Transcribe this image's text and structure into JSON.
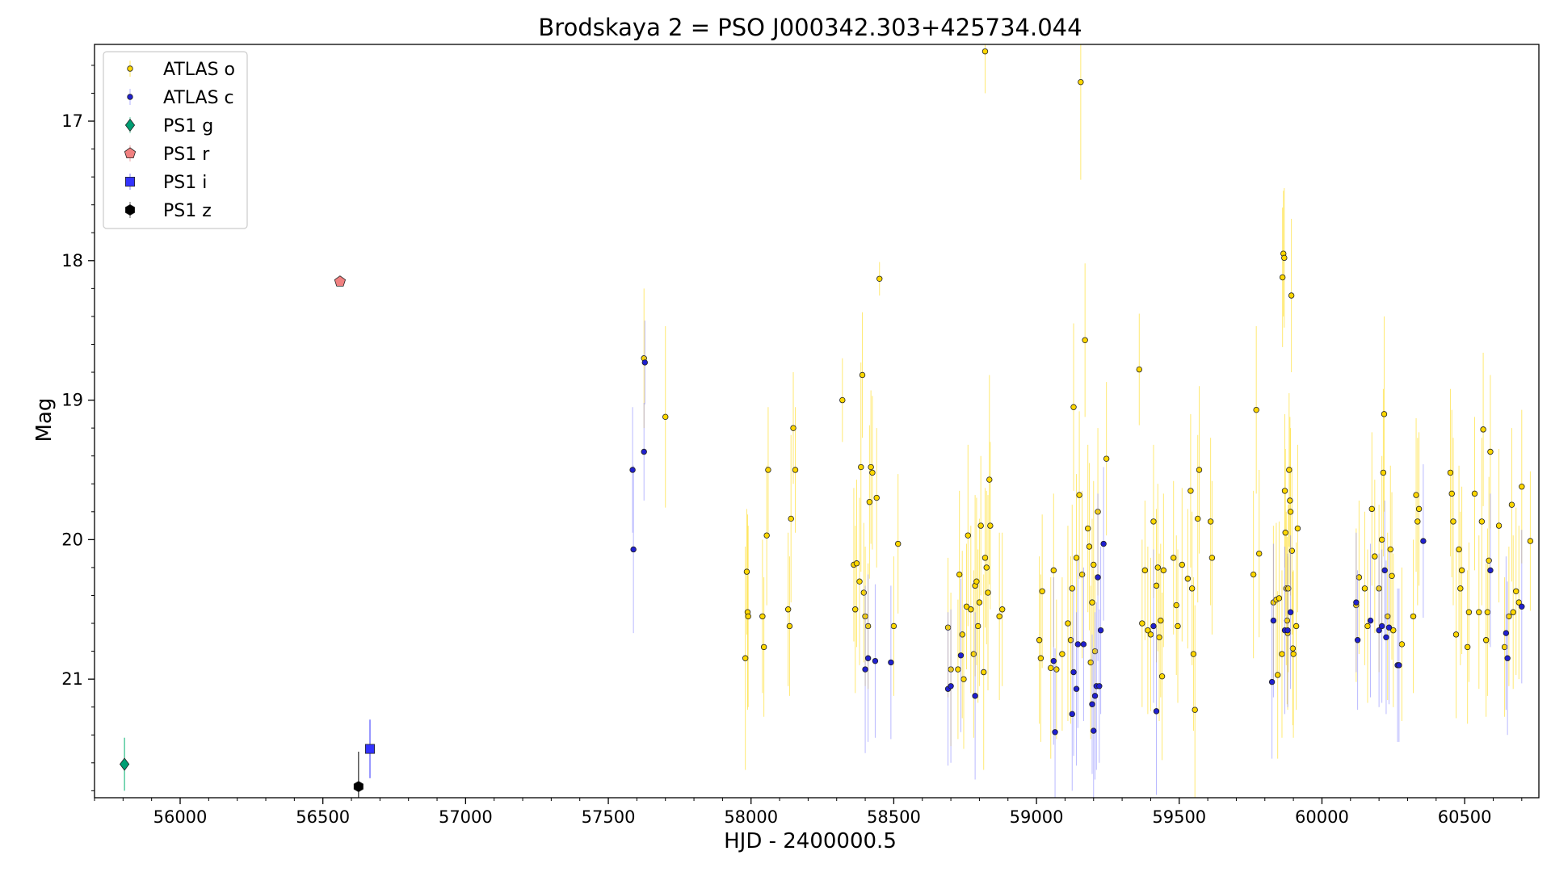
{
  "chart_data": {
    "type": "scatter",
    "title": "Brodskaya 2 = PSO J000342.303+425734.044",
    "xlabel": "HJD - 2400000.5",
    "ylabel": "Mag",
    "xlim": [
      55700,
      60760
    ],
    "ylim": [
      21.85,
      16.45
    ],
    "y_inverted": true,
    "grid": false,
    "legend_position": "top-left",
    "x_ticks": [
      "56000",
      "56500",
      "57000",
      "57500",
      "58000",
      "58500",
      "59000",
      "59500",
      "60000",
      "60500"
    ],
    "y_ticks": [
      "17",
      "18",
      "19",
      "20",
      "21"
    ],
    "series": [
      {
        "name": "ATLAS o",
        "marker": "circle",
        "color": "#ffd700",
        "error_color": "#ffd700",
        "points": [
          [
            57625,
            18.7,
            0.5
          ],
          [
            57700,
            19.12,
            0.65
          ],
          [
            57980,
            20.85,
            0.8
          ],
          [
            57985,
            20.23,
            0.45
          ],
          [
            57988,
            20.52,
            0.7
          ],
          [
            57990,
            20.55,
            0.65
          ],
          [
            58040,
            20.55,
            0.55
          ],
          [
            58045,
            20.77,
            0.5
          ],
          [
            58055,
            19.97,
            0.5
          ],
          [
            58060,
            19.5,
            0.45
          ],
          [
            58130,
            20.5,
            0.55
          ],
          [
            58135,
            20.62,
            0.5
          ],
          [
            58140,
            19.85,
            0.6
          ],
          [
            58148,
            19.2,
            0.4
          ],
          [
            58155,
            19.5,
            0.45
          ],
          [
            58320,
            19.0,
            0.3
          ],
          [
            58360,
            20.18,
            0.55
          ],
          [
            58365,
            20.5,
            0.6
          ],
          [
            58370,
            20.17,
            0.6
          ],
          [
            58380,
            20.3,
            0.6
          ],
          [
            58385,
            19.48,
            0.75
          ],
          [
            58390,
            18.82,
            0.45
          ],
          [
            58395,
            20.38,
            0.5
          ],
          [
            58400,
            20.55,
            0.5
          ],
          [
            58410,
            20.62,
            0.45
          ],
          [
            58415,
            19.73,
            0.55
          ],
          [
            58420,
            19.48,
            0.55
          ],
          [
            58425,
            19.52,
            0.55
          ],
          [
            58440,
            19.7,
            0.5
          ],
          [
            58450,
            18.13,
            0.12
          ],
          [
            58500,
            20.62,
            0.5
          ],
          [
            58515,
            20.03,
            0.5
          ],
          [
            58690,
            20.63,
            0.5
          ],
          [
            58700,
            20.93,
            0.55
          ],
          [
            58725,
            20.93,
            0.5
          ],
          [
            58730,
            20.25,
            0.6
          ],
          [
            58740,
            20.68,
            0.6
          ],
          [
            58745,
            21.0,
            0.5
          ],
          [
            58755,
            20.48,
            0.45
          ],
          [
            58760,
            19.97,
            0.65
          ],
          [
            58770,
            20.5,
            0.6
          ],
          [
            58780,
            20.82,
            0.6
          ],
          [
            58785,
            20.33,
            0.65
          ],
          [
            58790,
            20.3,
            0.6
          ],
          [
            58795,
            20.62,
            0.55
          ],
          [
            58800,
            20.45,
            0.6
          ],
          [
            58805,
            19.9,
            0.5
          ],
          [
            58815,
            20.95,
            0.7
          ],
          [
            58820,
            20.13,
            0.5
          ],
          [
            58825,
            20.2,
            0.55
          ],
          [
            58830,
            20.38,
            0.7
          ],
          [
            58835,
            19.57,
            0.75
          ],
          [
            58838,
            19.9,
            0.6
          ],
          [
            58870,
            20.55,
            0.6
          ],
          [
            58880,
            20.5,
            0.55
          ],
          [
            58820,
            16.5,
            0.3
          ],
          [
            59010,
            20.72,
            0.6
          ],
          [
            59015,
            20.85,
            0.6
          ],
          [
            59020,
            20.37,
            0.55
          ],
          [
            59050,
            20.92,
            0.65
          ],
          [
            59060,
            20.22,
            0.55
          ],
          [
            59070,
            20.93,
            0.5
          ],
          [
            59090,
            20.82,
            0.55
          ],
          [
            59110,
            20.6,
            0.7
          ],
          [
            59120,
            20.72,
            0.6
          ],
          [
            59125,
            20.35,
            0.6
          ],
          [
            59130,
            19.05,
            0.6
          ],
          [
            59140,
            20.13,
            0.6
          ],
          [
            59150,
            19.68,
            0.6
          ],
          [
            59155,
            16.72,
            0.7
          ],
          [
            59160,
            20.25,
            0.6
          ],
          [
            59170,
            18.57,
            0.55
          ],
          [
            59180,
            19.92,
            0.6
          ],
          [
            59185,
            20.05,
            0.6
          ],
          [
            59190,
            20.88,
            0.55
          ],
          [
            59195,
            20.45,
            0.6
          ],
          [
            59200,
            20.18,
            0.6
          ],
          [
            59205,
            20.8,
            0.55
          ],
          [
            59215,
            19.8,
            0.6
          ],
          [
            59245,
            19.42,
            0.55
          ],
          [
            59360,
            18.78,
            0.4
          ],
          [
            59370,
            20.6,
            0.6
          ],
          [
            59380,
            20.22,
            0.5
          ],
          [
            59390,
            20.65,
            0.6
          ],
          [
            59400,
            20.68,
            0.55
          ],
          [
            59410,
            19.87,
            0.55
          ],
          [
            59420,
            20.33,
            0.55
          ],
          [
            59425,
            20.2,
            0.6
          ],
          [
            59430,
            20.7,
            0.6
          ],
          [
            59435,
            20.58,
            0.55
          ],
          [
            59440,
            20.98,
            0.6
          ],
          [
            59445,
            20.22,
            0.55
          ],
          [
            59480,
            20.13,
            0.55
          ],
          [
            59490,
            20.47,
            0.5
          ],
          [
            59495,
            20.62,
            0.55
          ],
          [
            59510,
            20.18,
            0.55
          ],
          [
            59530,
            20.28,
            0.5
          ],
          [
            59540,
            19.65,
            0.55
          ],
          [
            59545,
            20.35,
            0.55
          ],
          [
            59550,
            20.82,
            0.55
          ],
          [
            59555,
            21.22,
            0.75
          ],
          [
            59565,
            19.85,
            0.6
          ],
          [
            59570,
            19.5,
            0.6
          ],
          [
            59610,
            19.87,
            0.6
          ],
          [
            59615,
            20.13,
            0.55
          ],
          [
            59760,
            20.25,
            0.6
          ],
          [
            59770,
            19.07,
            0.6
          ],
          [
            59780,
            20.1,
            0.6
          ],
          [
            59830,
            20.45,
            0.55
          ],
          [
            59840,
            20.43,
            0.55
          ],
          [
            59845,
            20.97,
            0.6
          ],
          [
            59850,
            20.42,
            0.55
          ],
          [
            59860,
            20.82,
            0.6
          ],
          [
            59862,
            18.12,
            0.5
          ],
          [
            59865,
            17.95,
            0.45
          ],
          [
            59868,
            17.98,
            0.5
          ],
          [
            59870,
            19.65,
            0.55
          ],
          [
            59872,
            19.95,
            0.6
          ],
          [
            59875,
            20.35,
            0.55
          ],
          [
            59878,
            20.58,
            0.6
          ],
          [
            59880,
            20.67,
            0.55
          ],
          [
            59882,
            20.35,
            0.6
          ],
          [
            59885,
            19.5,
            0.55
          ],
          [
            59888,
            19.72,
            0.6
          ],
          [
            59890,
            19.8,
            0.6
          ],
          [
            59893,
            18.25,
            0.55
          ],
          [
            59895,
            20.08,
            0.6
          ],
          [
            59898,
            20.78,
            0.55
          ],
          [
            59900,
            20.82,
            0.6
          ],
          [
            59910,
            20.62,
            0.6
          ],
          [
            59915,
            19.92,
            0.6
          ],
          [
            60120,
            20.47,
            0.55
          ],
          [
            60130,
            20.27,
            0.55
          ],
          [
            60150,
            20.35,
            0.55
          ],
          [
            60160,
            20.62,
            0.55
          ],
          [
            60175,
            19.78,
            0.55
          ],
          [
            60185,
            20.12,
            0.55
          ],
          [
            60200,
            20.35,
            0.6
          ],
          [
            60210,
            20.0,
            0.6
          ],
          [
            60215,
            19.52,
            0.6
          ],
          [
            60218,
            19.1,
            0.7
          ],
          [
            60230,
            20.55,
            0.6
          ],
          [
            60240,
            20.07,
            0.6
          ],
          [
            60245,
            20.26,
            0.6
          ],
          [
            60250,
            20.65,
            0.55
          ],
          [
            60280,
            20.75,
            0.55
          ],
          [
            60320,
            20.55,
            0.55
          ],
          [
            60330,
            19.68,
            0.55
          ],
          [
            60335,
            19.87,
            0.6
          ],
          [
            60340,
            19.78,
            0.55
          ],
          [
            60450,
            19.52,
            0.6
          ],
          [
            60455,
            19.67,
            0.6
          ],
          [
            60460,
            19.87,
            0.6
          ],
          [
            60470,
            20.68,
            0.6
          ],
          [
            60480,
            20.07,
            0.6
          ],
          [
            60485,
            20.35,
            0.55
          ],
          [
            60490,
            20.22,
            0.6
          ],
          [
            60510,
            20.77,
            0.55
          ],
          [
            60515,
            20.52,
            0.5
          ],
          [
            60535,
            19.67,
            0.55
          ],
          [
            60550,
            20.52,
            0.55
          ],
          [
            60560,
            19.87,
            0.6
          ],
          [
            60565,
            19.21,
            0.55
          ],
          [
            60575,
            20.72,
            0.55
          ],
          [
            60580,
            20.52,
            0.6
          ],
          [
            60585,
            20.15,
            0.6
          ],
          [
            60590,
            19.37,
            0.55
          ],
          [
            60620,
            19.9,
            0.55
          ],
          [
            60640,
            20.77,
            0.5
          ],
          [
            60655,
            20.55,
            0.5
          ],
          [
            60665,
            19.75,
            0.55
          ],
          [
            60670,
            20.52,
            0.55
          ],
          [
            60680,
            20.37,
            0.6
          ],
          [
            60690,
            20.45,
            0.55
          ],
          [
            60700,
            19.62,
            0.55
          ],
          [
            60730,
            20.01,
            0.5
          ]
        ]
      },
      {
        "name": "ATLAS c",
        "marker": "circle",
        "color": "#2020d0",
        "error_color": "#8080ff",
        "points": [
          [
            57585,
            19.5,
            0.45
          ],
          [
            57588,
            20.07,
            0.6
          ],
          [
            57625,
            19.37,
            0.35
          ],
          [
            57628,
            18.73,
            0.3
          ],
          [
            58400,
            20.93,
            0.6
          ],
          [
            58410,
            20.85,
            0.6
          ],
          [
            58435,
            20.87,
            0.55
          ],
          [
            58490,
            20.88,
            0.55
          ],
          [
            58690,
            21.07,
            0.55
          ],
          [
            58700,
            21.05,
            0.55
          ],
          [
            58735,
            20.83,
            0.55
          ],
          [
            58785,
            21.12,
            0.6
          ],
          [
            59060,
            20.87,
            0.6
          ],
          [
            59065,
            21.38,
            0.6
          ],
          [
            59125,
            21.25,
            0.55
          ],
          [
            59130,
            20.95,
            0.6
          ],
          [
            59140,
            21.07,
            0.55
          ],
          [
            59145,
            20.75,
            0.6
          ],
          [
            59165,
            20.75,
            0.55
          ],
          [
            59195,
            21.18,
            0.5
          ],
          [
            59200,
            21.37,
            0.55
          ],
          [
            59205,
            21.12,
            0.6
          ],
          [
            59210,
            21.05,
            0.6
          ],
          [
            59215,
            20.27,
            0.6
          ],
          [
            59220,
            21.05,
            0.55
          ],
          [
            59225,
            20.65,
            0.6
          ],
          [
            59235,
            20.03,
            0.55
          ],
          [
            59410,
            20.62,
            0.55
          ],
          [
            59420,
            21.23,
            0.6
          ],
          [
            59825,
            21.02,
            0.55
          ],
          [
            59830,
            20.58,
            0.55
          ],
          [
            59870,
            20.65,
            0.6
          ],
          [
            59880,
            20.65,
            0.55
          ],
          [
            59890,
            20.52,
            0.55
          ],
          [
            60120,
            20.45,
            0.5
          ],
          [
            60125,
            20.72,
            0.5
          ],
          [
            60170,
            20.58,
            0.55
          ],
          [
            60200,
            20.65,
            0.55
          ],
          [
            60210,
            20.62,
            0.55
          ],
          [
            60220,
            20.22,
            0.5
          ],
          [
            60225,
            20.7,
            0.55
          ],
          [
            60235,
            20.63,
            0.55
          ],
          [
            60265,
            20.9,
            0.55
          ],
          [
            60270,
            20.9,
            0.55
          ],
          [
            60355,
            20.01,
            0.55
          ],
          [
            60590,
            20.22,
            0.55
          ],
          [
            60645,
            20.67,
            0.55
          ],
          [
            60650,
            20.85,
            0.55
          ],
          [
            60700,
            20.48,
            0.55
          ]
        ]
      },
      {
        "name": "PS1 g",
        "marker": "diamond",
        "color": "#009e73",
        "error_color": "#00b070",
        "points": [
          [
            55805,
            21.61,
            0.19
          ]
        ]
      },
      {
        "name": "PS1 r",
        "marker": "pentagon",
        "color": "#f08080",
        "error_color": "#e07070",
        "points": [
          [
            56560,
            18.15,
            0.02
          ]
        ]
      },
      {
        "name": "PS1 i",
        "marker": "square",
        "color": "#3333ff",
        "error_color": "#3333ff",
        "points": [
          [
            56665,
            21.5,
            0.21
          ]
        ]
      },
      {
        "name": "PS1 z",
        "marker": "hexagon",
        "color": "#000000",
        "error_color": "#000000",
        "points": [
          [
            56625,
            21.77,
            0.25
          ]
        ]
      }
    ]
  }
}
